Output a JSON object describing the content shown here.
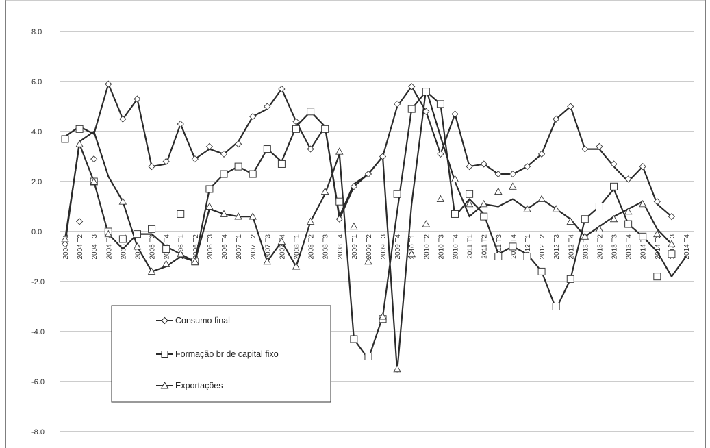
{
  "chart_data": {
    "type": "line",
    "title": "",
    "xlabel": "",
    "ylabel": "",
    "ylim": [
      -8,
      8
    ],
    "yticks": [
      -8.0,
      -6.0,
      -4.0,
      -2.0,
      0.0,
      2.0,
      4.0,
      6.0,
      8.0
    ],
    "ytick_labels": [
      "-8.0",
      "-6.0",
      "-4.0",
      "-2.0",
      "0.0",
      "2.0",
      "4.0",
      "6.0",
      "8.0"
    ],
    "grid": "horizontal",
    "legend_position": "bottom-left",
    "categories": [
      "2004 T1",
      "2004 T2",
      "2004 T3",
      "2004 T4",
      "2005 T1",
      "2005 T2",
      "2005 T3",
      "2005 T4",
      "2006 T1",
      "2006 T2",
      "2006 T3",
      "2006 T4",
      "2007 T1",
      "2007 T2",
      "2007 T3",
      "2007 T4",
      "2008 T1",
      "2008 T2",
      "2008 T3",
      "2008 T4",
      "2009 T1",
      "2009 T2",
      "2009 T3",
      "2009 T4",
      "2010 T1",
      "2010 T2",
      "2010 T3",
      "2010 T4",
      "2011 T1",
      "2011 T2",
      "2011 T3",
      "2011 T4",
      "2012 T1",
      "2012 T2",
      "2012 T3",
      "2012 T4",
      "2013 T1",
      "2013 T2",
      "2013 T3",
      "2013 T4",
      "2014 T1",
      "2014 T2",
      "2014 T3",
      "2014 T4"
    ],
    "series": [
      {
        "name": "Consumo final",
        "marker": "diamond",
        "line": [
          3.8,
          4.2,
          3.9,
          5.9,
          4.5,
          5.3,
          2.6,
          2.7,
          4.3,
          2.9,
          3.3,
          3.1,
          3.6,
          4.6,
          4.9,
          5.7,
          4.4,
          3.3,
          4.2,
          0.5,
          1.8,
          2.3,
          3.0,
          5.0,
          5.8,
          4.8,
          3.1,
          4.7,
          2.6,
          2.7,
          2.3,
          2.3,
          2.6,
          3.1,
          4.5,
          5.0,
          3.3,
          3.3,
          2.6,
          2.0,
          2.6,
          1.1,
          0.6,
          null
        ],
        "markers": [
          -0.5,
          0.4,
          2.9,
          5.9,
          4.5,
          5.3,
          2.6,
          2.8,
          4.3,
          2.9,
          3.4,
          3.1,
          3.5,
          4.6,
          5.0,
          5.7,
          4.4,
          3.3,
          4.1,
          0.5,
          1.8,
          2.3,
          3.0,
          5.1,
          5.8,
          4.8,
          3.1,
          4.7,
          2.6,
          2.7,
          2.3,
          2.3,
          2.6,
          3.1,
          4.5,
          5.0,
          3.3,
          3.4,
          2.7,
          2.1,
          2.6,
          1.2,
          0.6,
          null
        ]
      },
      {
        "name": "Formação br de capital fixo",
        "marker": "square",
        "line": [
          -0.3,
          3.5,
          2.0,
          -0.1,
          -0.7,
          -0.1,
          -0.1,
          -0.6,
          -0.9,
          -1.2,
          0.9,
          0.7,
          0.6,
          0.6,
          -1.2,
          -0.4,
          -1.4,
          0.4,
          1.5,
          3.1,
          -4.3,
          -5.1,
          -3.4,
          0.8,
          4.9,
          5.6,
          5.1,
          0.6,
          1.3,
          0.7,
          -0.9,
          -0.6,
          -0.9,
          -1.6,
          -3.1,
          -1.9,
          0.5,
          1.0,
          1.7,
          0.3,
          -0.2,
          -0.8,
          -1.8,
          -1.0
        ],
        "markers": [
          3.7,
          4.1,
          2.0,
          0.0,
          -0.3,
          -0.1,
          0.1,
          -0.7,
          0.7,
          -1.2,
          1.7,
          2.3,
          2.6,
          2.3,
          3.3,
          2.7,
          4.1,
          4.8,
          4.1,
          1.2,
          -4.3,
          -5.0,
          -3.5,
          1.5,
          4.9,
          5.6,
          5.1,
          0.7,
          1.5,
          0.6,
          -1.0,
          -0.6,
          -1.0,
          -1.6,
          -3.0,
          -1.9,
          0.5,
          1.0,
          1.8,
          0.3,
          -0.2,
          -1.8,
          -0.9,
          null
        ]
      },
      {
        "name": "Exportações",
        "marker": "triangle",
        "line": [
          -0.5,
          3.6,
          4.0,
          2.2,
          1.2,
          -0.6,
          -1.6,
          -1.4,
          -1.0,
          -1.2,
          1.7,
          2.3,
          2.6,
          2.3,
          3.3,
          2.8,
          4.2,
          4.8,
          4.2,
          0.6,
          1.9,
          2.3,
          3.0,
          -5.6,
          1.1,
          5.7,
          3.8,
          2.0,
          0.6,
          1.1,
          1.0,
          1.3,
          0.9,
          1.3,
          0.9,
          0.5,
          -0.2,
          0.2,
          0.6,
          0.9,
          1.2,
          0.1,
          -0.5,
          null
        ],
        "markers": [
          -0.3,
          3.5,
          2.0,
          -0.1,
          1.2,
          -0.6,
          -1.6,
          -1.3,
          -0.9,
          -1.2,
          1.0,
          0.7,
          0.6,
          0.6,
          -1.2,
          -0.4,
          -1.4,
          0.4,
          1.6,
          3.2,
          0.2,
          -1.2,
          -3.4,
          -5.5,
          -0.9,
          0.3,
          1.3,
          2.1,
          1.1,
          1.1,
          1.6,
          1.8,
          0.9,
          1.3,
          0.9,
          0.4,
          -0.2,
          0.1,
          0.5,
          0.8,
          1.1,
          -0.1,
          -0.5,
          null
        ]
      }
    ]
  },
  "legend": {
    "items": [
      "Consumo final",
      "Formação br de capital fixo",
      "Exportações"
    ]
  },
  "colors": {
    "line": "#2b2b2b",
    "grid": "#9a9a9a",
    "frame": "#555555",
    "background": "#ffffff"
  }
}
